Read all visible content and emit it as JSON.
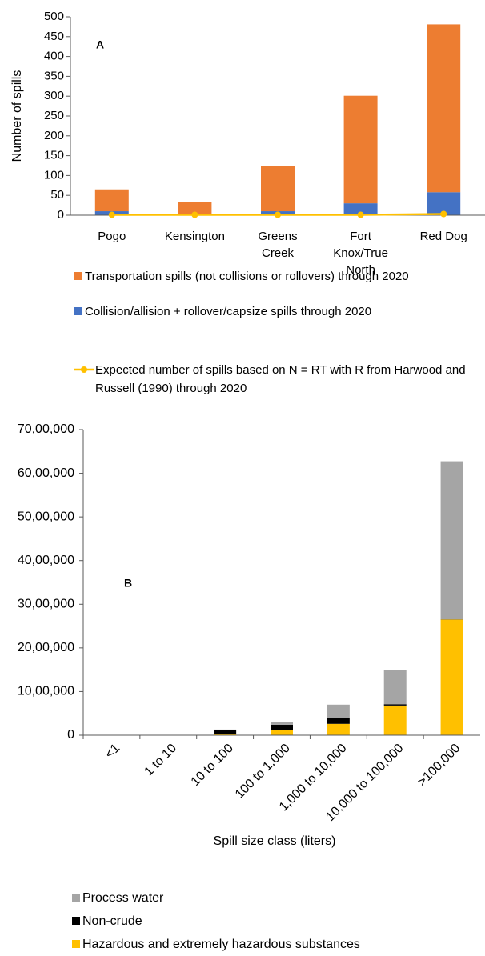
{
  "chart_data": [
    {
      "type": "bar",
      "stacked": true,
      "annotation": "A",
      "ylabel": "Number of spills",
      "categories": [
        "Pogo",
        "Kensington",
        "Greens Creek",
        "Fort Knox/True North",
        "Red Dog"
      ],
      "series": [
        {
          "name": "Transportation spills (not collisions or rollovers) through 2020",
          "color": "#ED7D31",
          "values": [
            55,
            32,
            113,
            271,
            423
          ]
        },
        {
          "name": "Collision/allision + rollover/capsize spills through 2020",
          "color": "#4472C4",
          "values": [
            10,
            2,
            10,
            30,
            58
          ]
        },
        {
          "name": "Expected number of spills based on N = RT with R from Harwood and Russell (1990) through 2020",
          "type": "line",
          "color": "#FFC000",
          "values": [
            1,
            1,
            1,
            1,
            3
          ]
        }
      ],
      "ylim": [
        0,
        500
      ],
      "yticks": [
        0,
        50,
        100,
        150,
        200,
        250,
        300,
        350,
        400,
        450,
        500
      ],
      "grid": false
    },
    {
      "type": "bar",
      "stacked": true,
      "annotation": "B",
      "xlabel": "Spill size class (liters)",
      "categories": [
        "<1",
        "1 to 10",
        "10 to 100",
        "100 to 1,000",
        "1,000 to 10,000",
        "10,000 to 100,000",
        ">100,000"
      ],
      "series": [
        {
          "name": "Process water",
          "color": "#A5A5A5",
          "values": [
            0,
            0,
            10000,
            70000,
            300000,
            790000,
            3620000
          ]
        },
        {
          "name": "Non-crude",
          "color": "#000000",
          "values": [
            0,
            0,
            100000,
            130000,
            140000,
            30000,
            5000
          ]
        },
        {
          "name": "Hazardous and extremely hazardous substances",
          "color": "#FFC000",
          "values": [
            0,
            0,
            20000,
            110000,
            260000,
            680000,
            2650000
          ]
        }
      ],
      "ylim": [
        0,
        7000000
      ],
      "yticks": [
        0,
        {
          "value": 1000000,
          "label": "10,00,000"
        },
        {
          "value": 2000000,
          "label": "20,00,000"
        },
        {
          "value": 3000000,
          "label": "30,00,000"
        },
        {
          "value": 4000000,
          "label": "40,00,000"
        },
        {
          "value": 5000000,
          "label": "50,00,000"
        },
        {
          "value": 6000000,
          "label": "60,00,000"
        },
        {
          "value": 7000000,
          "label": "70,00,000"
        }
      ],
      "grid": false
    }
  ]
}
